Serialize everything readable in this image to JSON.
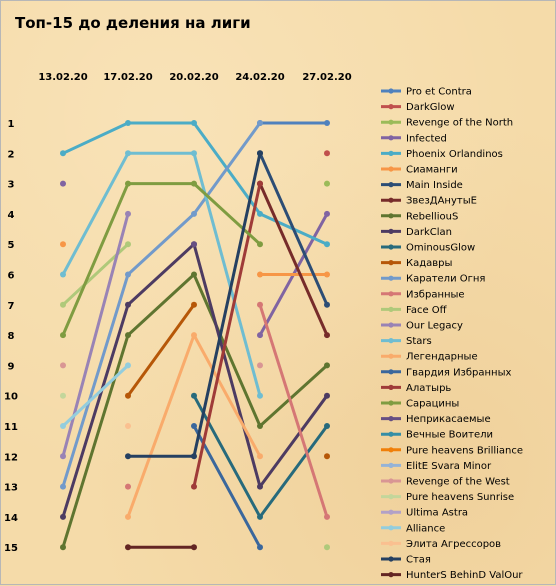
{
  "chart_data": {
    "type": "line",
    "title": "Топ-15 до деления на лиги",
    "xlabel": "",
    "ylabel": "",
    "categories": [
      "13.02.20",
      "17.02.20",
      "20.02.20",
      "24.02.20",
      "27.02.20"
    ],
    "y_ticks": [
      "1",
      "2",
      "3",
      "4",
      "5",
      "6",
      "7",
      "8",
      "9",
      "10",
      "11",
      "12",
      "13",
      "14",
      "15"
    ],
    "ylim": [
      1,
      15
    ],
    "y_inverted": true,
    "legend_position": "right",
    "grid": false,
    "series": [
      {
        "name": "Pro et Contra",
        "color": "#4f81bd",
        "values": [
          null,
          null,
          null,
          1,
          1
        ]
      },
      {
        "name": "DarkGlow",
        "color": "#c0504d",
        "values": [
          null,
          null,
          null,
          null,
          2
        ]
      },
      {
        "name": "Revenge of the North",
        "color": "#9bbb59",
        "values": [
          null,
          null,
          null,
          null,
          3
        ]
      },
      {
        "name": "Infected",
        "color": "#8064a2",
        "values": [
          3,
          null,
          null,
          8,
          4
        ]
      },
      {
        "name": "Phoenix Orlandinos",
        "color": "#4bacc6",
        "values": [
          2,
          1,
          1,
          4,
          5
        ]
      },
      {
        "name": "Сиаманги",
        "color": "#f79646",
        "values": [
          5,
          null,
          null,
          6,
          6
        ]
      },
      {
        "name": "Main Inside",
        "color": "#2c4d75",
        "values": [
          null,
          null,
          null,
          2,
          7
        ]
      },
      {
        "name": "ЗвезДАнутыЕ",
        "color": "#772c2a",
        "values": [
          null,
          null,
          null,
          3,
          8
        ]
      },
      {
        "name": "RebelliouS",
        "color": "#5f7530",
        "values": [
          15,
          8,
          6,
          11,
          9
        ]
      },
      {
        "name": "DarkClan",
        "color": "#4d3b62",
        "values": [
          14,
          7,
          5,
          13,
          10
        ]
      },
      {
        "name": "OminousGlow",
        "color": "#276a7c",
        "values": [
          null,
          null,
          10,
          14,
          11
        ]
      },
      {
        "name": "Кадавры",
        "color": "#b65708",
        "values": [
          null,
          10,
          7,
          null,
          12
        ]
      },
      {
        "name": "Каратели Огня",
        "color": "#729aca",
        "values": [
          13,
          6,
          4,
          1,
          null
        ]
      },
      {
        "name": "Избранные",
        "color": "#d57775",
        "values": [
          null,
          13,
          null,
          7,
          14
        ]
      },
      {
        "name": "Face Off",
        "color": "#afc97a",
        "values": [
          7,
          5,
          null,
          null,
          15
        ]
      },
      {
        "name": "Our Legacy",
        "color": "#9983b5",
        "values": [
          12,
          4,
          null,
          null,
          null
        ]
      },
      {
        "name": "Stars",
        "color": "#6fbdd1",
        "values": [
          6,
          2,
          2,
          10,
          null
        ]
      },
      {
        "name": "Легендарные",
        "color": "#f9ab6b",
        "values": [
          null,
          14,
          8,
          12,
          null
        ]
      },
      {
        "name": "Гвардия Избранных",
        "color": "#3a679c",
        "values": [
          null,
          null,
          11,
          15,
          null
        ]
      },
      {
        "name": "Алатырь",
        "color": "#9f3b38",
        "values": [
          null,
          null,
          13,
          3,
          null
        ]
      },
      {
        "name": "Сарацины",
        "color": "#7f9c41",
        "values": [
          8,
          3,
          3,
          5,
          null
        ]
      },
      {
        "name": "Неприкасаемые",
        "color": "#664f83",
        "values": [
          null,
          null,
          5,
          null,
          null
        ]
      },
      {
        "name": "Вечные Воители",
        "color": "#358ea6",
        "values": [
          null,
          null,
          null,
          null,
          null
        ]
      },
      {
        "name": "Pure heavens Brilliance",
        "color": "#f07f09",
        "values": [
          null,
          null,
          null,
          null,
          null
        ]
      },
      {
        "name": "ElitE Svara Minor",
        "color": "#95b3d7",
        "values": [
          null,
          null,
          null,
          null,
          null
        ]
      },
      {
        "name": "Revenge of the West",
        "color": "#d99694",
        "values": [
          9,
          null,
          null,
          9,
          null
        ]
      },
      {
        "name": "Pure heavens Sunrise",
        "color": "#c3d69b",
        "values": [
          10,
          null,
          null,
          null,
          null
        ]
      },
      {
        "name": "Ultima Astra",
        "color": "#b2a1c7",
        "values": [
          null,
          null,
          null,
          null,
          null
        ]
      },
      {
        "name": "Alliance",
        "color": "#93cddd",
        "values": [
          11,
          9,
          null,
          null,
          null
        ]
      },
      {
        "name": "Элита Агрессоров",
        "color": "#fac090",
        "values": [
          null,
          11,
          null,
          null,
          null
        ]
      },
      {
        "name": "Стая",
        "color": "#254061",
        "values": [
          null,
          12,
          12,
          2,
          null
        ]
      },
      {
        "name": "HunterS BehinD ValOur",
        "color": "#632523",
        "values": [
          null,
          15,
          15,
          null,
          null
        ]
      }
    ]
  }
}
